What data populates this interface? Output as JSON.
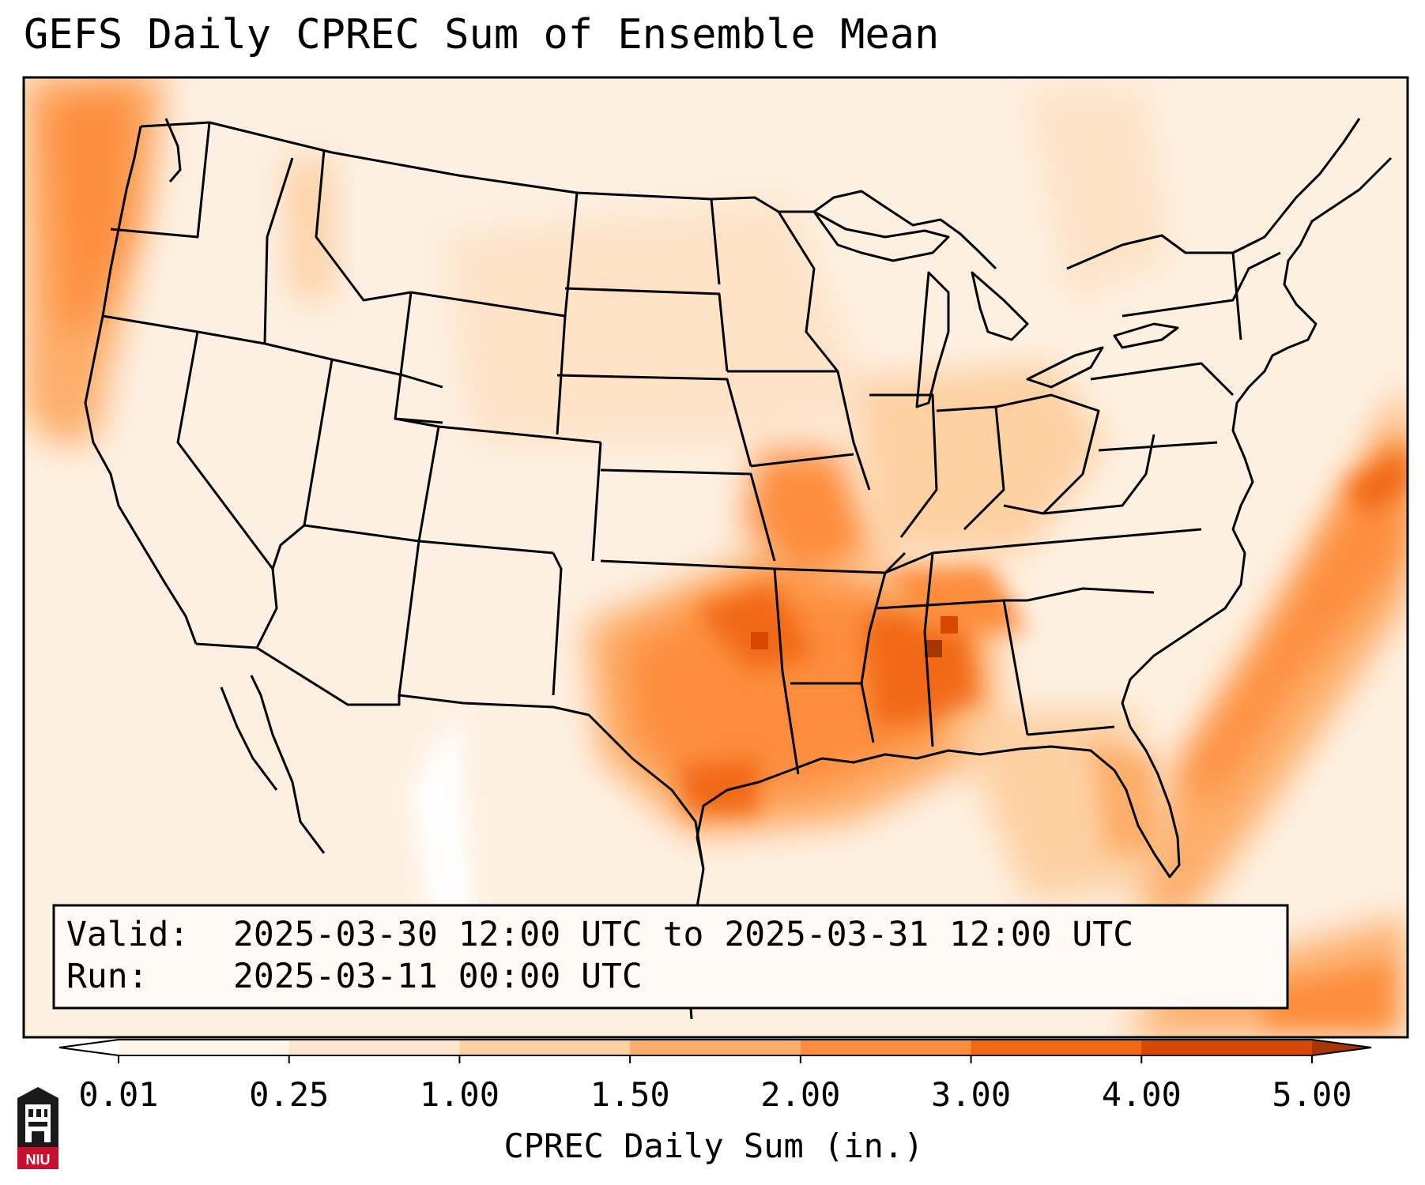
{
  "title": "GEFS Daily CPREC Sum of Ensemble Mean",
  "info": {
    "valid_label": "Valid:",
    "valid_value": "2025-03-30 12:00 UTC to 2025-03-31 12:00 UTC",
    "run_label": "Run:",
    "run_value": "2025-03-11 00:00 UTC"
  },
  "colorbar": {
    "label": "CPREC Daily Sum (in.)",
    "ticks": [
      "0.01",
      "0.25",
      "1.00",
      "1.50",
      "2.00",
      "3.00",
      "4.00",
      "5.00"
    ],
    "colors": [
      "#fff5eb",
      "#fee6ce",
      "#fdd0a2",
      "#fdae6b",
      "#fd8d3c",
      "#f16913",
      "#d94801",
      "#a63603"
    ],
    "extend": "both"
  },
  "logo": {
    "text": "NIU",
    "colors": {
      "red": "#c8102e",
      "dark": "#1a1a1a"
    }
  },
  "map": {
    "projection": "Lambert conformal",
    "region": "Contiguous United States",
    "precip_regions": [
      {
        "name": "Pacific Northwest coast",
        "level": 3
      },
      {
        "name": "Southern Plains to Gulf Coast",
        "level": 4
      },
      {
        "name": "Lower Mississippi Valley / Alabama",
        "level": 5
      },
      {
        "name": "Western Atlantic offshore band",
        "level": 3
      }
    ]
  }
}
